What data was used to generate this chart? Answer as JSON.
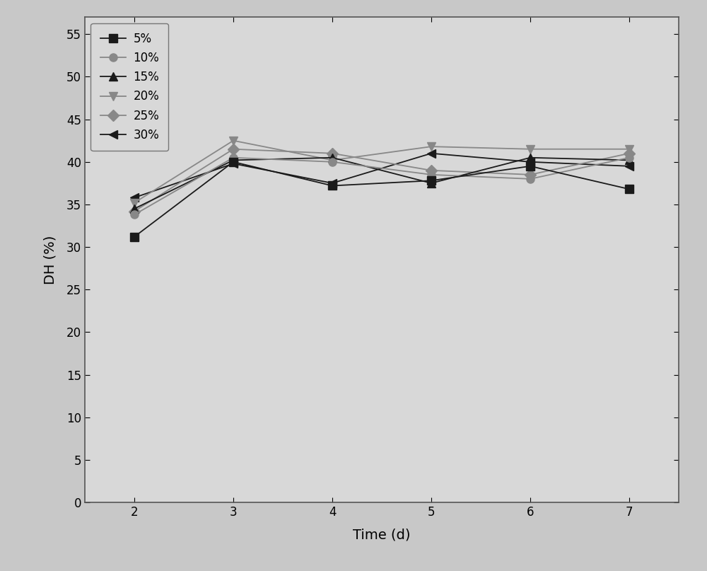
{
  "x": [
    2,
    3,
    4,
    5,
    6,
    7
  ],
  "series": [
    {
      "label": "5%",
      "values": [
        31.2,
        40.0,
        37.2,
        37.8,
        39.5,
        36.8
      ],
      "color": "#1a1a1a",
      "marker": "s",
      "markersize": 8,
      "zorder": 6
    },
    {
      "label": "10%",
      "values": [
        33.8,
        40.5,
        40.0,
        38.5,
        38.0,
        40.5
      ],
      "color": "#888888",
      "marker": "o",
      "markersize": 8,
      "zorder": 5
    },
    {
      "label": "15%",
      "values": [
        34.5,
        40.2,
        40.5,
        37.5,
        40.5,
        40.2
      ],
      "color": "#1a1a1a",
      "marker": "^",
      "markersize": 9,
      "zorder": 4
    },
    {
      "label": "20%",
      "values": [
        35.2,
        42.5,
        40.2,
        41.8,
        41.5,
        41.5
      ],
      "color": "#888888",
      "marker": "v",
      "markersize": 9,
      "zorder": 3
    },
    {
      "label": "25%",
      "values": [
        34.2,
        41.5,
        41.0,
        39.0,
        38.5,
        41.0
      ],
      "color": "#888888",
      "marker": "D",
      "markersize": 8,
      "zorder": 2
    },
    {
      "label": "30%",
      "values": [
        35.8,
        39.8,
        37.5,
        41.0,
        40.0,
        39.5
      ],
      "color": "#1a1a1a",
      "marker": "<",
      "markersize": 9,
      "zorder": 1
    }
  ],
  "xlim": [
    1.5,
    7.5
  ],
  "ylim": [
    0,
    57
  ],
  "yticks": [
    0,
    5,
    10,
    15,
    20,
    25,
    30,
    35,
    40,
    45,
    50,
    55
  ],
  "xticks": [
    2,
    3,
    4,
    5,
    6,
    7
  ],
  "xlabel": "Time (d)",
  "ylabel": "DH (%)",
  "outer_bg_color": "#c8c8c8",
  "plot_bg_color": "#d8d8d8",
  "line_width": 1.3,
  "legend_fontsize": 12,
  "axis_fontsize": 14,
  "tick_fontsize": 12
}
